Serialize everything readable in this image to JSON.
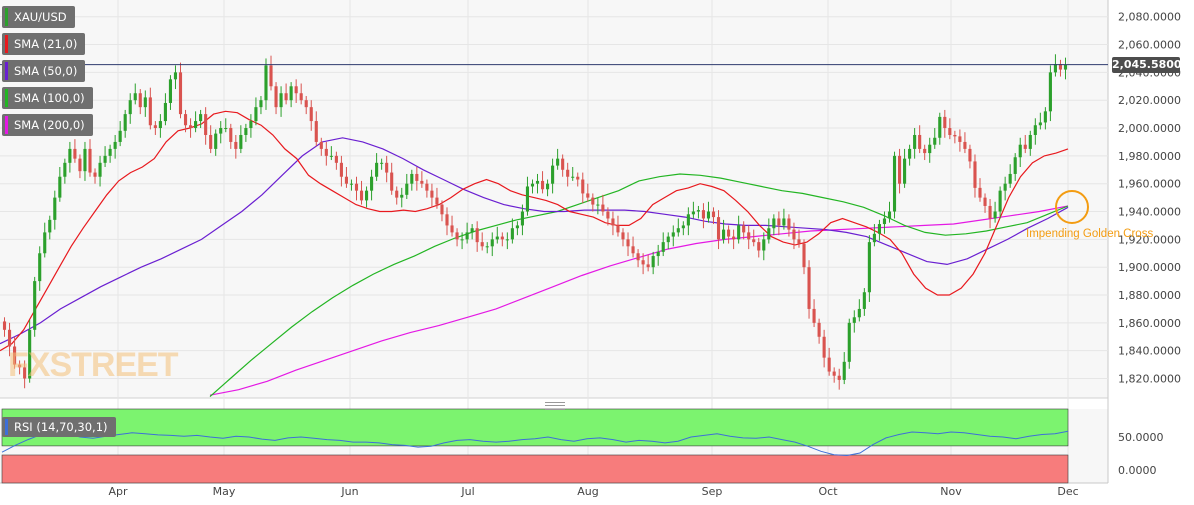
{
  "chart_data": {
    "type": "candlestick",
    "symbol": "XAU/USD",
    "last_price_label": "2,045.5800",
    "x_ticks": [
      "Apr",
      "May",
      "Jun",
      "Jul",
      "Aug",
      "Sep",
      "Oct",
      "Nov",
      "Dec"
    ],
    "y_ticks": [
      "2,080.0000",
      "2,060.0000",
      "2,040.0000",
      "2,020.0000",
      "2,000.0000",
      "1,980.0000",
      "1,960.0000",
      "1,940.0000",
      "1,920.0000",
      "1,900.0000",
      "1,880.0000",
      "1,860.0000",
      "1,840.0000",
      "1,820.0000"
    ],
    "ylim": [
      1806,
      2092
    ],
    "colors": {
      "up": "#2ca02c",
      "down": "#d9534f",
      "sma21": "#e8191e",
      "sma50": "#6a1fd1",
      "sma100": "#23b523",
      "sma200": "#e419e4",
      "annotation": "#f39c12"
    },
    "indicators": [
      {
        "name": "SMA (21,0)",
        "color": "#e8191e"
      },
      {
        "name": "SMA (50,0)",
        "color": "#6a1fd1"
      },
      {
        "name": "SMA (100,0)",
        "color": "#23b523"
      },
      {
        "name": "SMA (200,0)",
        "color": "#e419e4"
      }
    ],
    "closes": [
      1855,
      1843,
      1830,
      1828,
      1820,
      1855,
      1890,
      1910,
      1925,
      1934,
      1950,
      1965,
      1975,
      1985,
      1978,
      1969,
      1985,
      1968,
      1965,
      1975,
      1980,
      1985,
      1990,
      1998,
      2010,
      2020,
      2025,
      2015,
      2022,
      2002,
      2000,
      2005,
      2018,
      2035,
      2040,
      2010,
      2002,
      2000,
      2005,
      2010,
      1995,
      1985,
      1996,
      2000,
      2000,
      1990,
      1985,
      1995,
      2000,
      2005,
      2015,
      2020,
      2045,
      2030,
      2015,
      2025,
      2020,
      2030,
      2025,
      2020,
      2015,
      2005,
      1990,
      1985,
      1980,
      1980,
      1975,
      1965,
      1960,
      1960,
      1955,
      1948,
      1955,
      1965,
      1975,
      1975,
      1968,
      1955,
      1950,
      1952,
      1960,
      1967,
      1962,
      1960,
      1955,
      1950,
      1945,
      1938,
      1930,
      1925,
      1920,
      1920,
      1925,
      1928,
      1918,
      1915,
      1915,
      1920,
      1922,
      1920,
      1920,
      1928,
      1930,
      1940,
      1958,
      1960,
      1962,
      1956,
      1960,
      1973,
      1978,
      1970,
      1965,
      1965,
      1963,
      1953,
      1950,
      1945,
      1945,
      1940,
      1935,
      1930,
      1925,
      1920,
      1915,
      1910,
      1905,
      1902,
      1900,
      1908,
      1911,
      1918,
      1922,
      1925,
      1928,
      1930,
      1938,
      1940,
      1941,
      1935,
      1940,
      1936,
      1920,
      1927,
      1922,
      1920,
      1930,
      1925,
      1920,
      1918,
      1912,
      1920,
      1928,
      1935,
      1930,
      1935,
      1927,
      1920,
      1917,
      1900,
      1870,
      1860,
      1850,
      1835,
      1825,
      1822,
      1819,
      1832,
      1860,
      1864,
      1870,
      1882,
      1918,
      1924,
      1931,
      1935,
      1940,
      1980,
      1960,
      1978,
      1985,
      1995,
      1985,
      1982,
      1988,
      1993,
      2008,
      2000,
      1995,
      1994,
      1990,
      1985,
      1976,
      1957,
      1950,
      1944,
      1935,
      1940,
      1955,
      1960,
      1967,
      1979,
      1988,
      1985,
      1995,
      2002,
      2004,
      2012,
      2040,
      2046,
      2042,
      2045.58
    ],
    "sma21": [
      1840,
      1845,
      1855,
      1870,
      1885,
      1900,
      1915,
      1928,
      1940,
      1952,
      1962,
      1968,
      1972,
      1978,
      1990,
      1998,
      2000,
      2003,
      2010,
      2012,
      2011,
      2006,
      2002,
      1995,
      1985,
      1978,
      1966,
      1960,
      1955,
      1950,
      1945,
      1942,
      1940,
      1940,
      1941,
      1940,
      1942,
      1945,
      1950,
      1956,
      1960,
      1963,
      1960,
      1955,
      1952,
      1950,
      1948,
      1945,
      1940,
      1938,
      1936,
      1932,
      1930,
      1930,
      1935,
      1945,
      1950,
      1955,
      1957,
      1960,
      1958,
      1955,
      1948,
      1940,
      1930,
      1922,
      1918,
      1916,
      1918,
      1924,
      1932,
      1935,
      1932,
      1929,
      1925,
      1920,
      1910,
      1895,
      1885,
      1880,
      1880,
      1885,
      1895,
      1910,
      1930,
      1950,
      1965,
      1975,
      1980,
      1982,
      1985
    ],
    "sma50": [
      1845,
      1852,
      1860,
      1870,
      1878,
      1886,
      1893,
      1900,
      1906,
      1913,
      1920,
      1930,
      1940,
      1952,
      1966,
      1980,
      1990,
      1993,
      1990,
      1985,
      1978,
      1970,
      1963,
      1956,
      1950,
      1945,
      1942,
      1940,
      1940,
      1941,
      1941,
      1941,
      1940,
      1938,
      1936,
      1933,
      1931,
      1930,
      1930,
      1929,
      1928,
      1927,
      1925,
      1922,
      1916,
      1910,
      1904,
      1902,
      1906,
      1913,
      1920,
      1928,
      1935,
      1943
    ],
    "sma100": [
      1807,
      1820,
      1833,
      1845,
      1857,
      1868,
      1878,
      1887,
      1895,
      1902,
      1908,
      1915,
      1921,
      1926,
      1930,
      1934,
      1937,
      1940,
      1945,
      1950,
      1955,
      1962,
      1965,
      1967,
      1966,
      1964,
      1961,
      1958,
      1955,
      1953,
      1950,
      1947,
      1943,
      1937,
      1930,
      1925,
      1923,
      1924,
      1926,
      1929,
      1932,
      1938,
      1944
    ],
    "sma200": [
      1808,
      1812,
      1818,
      1826,
      1833,
      1840,
      1847,
      1853,
      1858,
      1864,
      1870,
      1878,
      1886,
      1894,
      1901,
      1907,
      1913,
      1917,
      1920,
      1922,
      1924,
      1926,
      1927,
      1928,
      1929,
      1930,
      1931,
      1934,
      1937,
      1940,
      1944
    ],
    "rsi": {
      "label": "RSI (14,70,30,1)",
      "y_ticks": [
        "50.0000",
        "0.0000"
      ],
      "overbought": 70,
      "oversold": 30,
      "line": [
        22,
        38,
        52,
        64,
        70,
        66,
        58,
        55,
        60,
        64,
        68,
        66,
        63,
        62,
        60,
        62,
        58,
        55,
        60,
        58,
        53,
        50,
        56,
        58,
        55,
        52,
        50,
        46,
        46,
        44,
        40,
        38,
        34,
        36,
        44,
        50,
        52,
        48,
        46,
        48,
        52,
        54,
        58,
        52,
        48,
        54,
        56,
        52,
        46,
        50,
        48,
        44,
        48,
        58,
        62,
        66,
        60,
        56,
        55,
        58,
        52,
        46,
        36,
        24,
        16,
        14,
        20,
        40,
        56,
        64,
        70,
        68,
        66,
        70,
        68,
        64,
        60,
        58,
        54,
        60,
        64,
        66,
        72
      ]
    }
  }
}
